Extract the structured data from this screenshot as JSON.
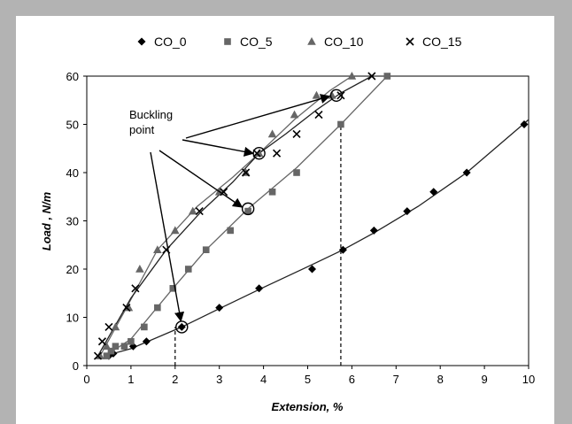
{
  "chart_data": {
    "type": "scatter",
    "xlabel": "Extension, %",
    "ylabel": "Load , N/m",
    "xlim": [
      0,
      10
    ],
    "ylim": [
      0,
      60
    ],
    "xticks": [
      "0",
      "1",
      "2",
      "3",
      "4",
      "5",
      "6",
      "7",
      "8",
      "9",
      "10"
    ],
    "yticks": [
      "0",
      "10",
      "20",
      "30",
      "40",
      "50",
      "60"
    ],
    "grid": false,
    "legend_position": "top",
    "annotation": "Buckling point",
    "series": [
      {
        "name": "CO_0",
        "marker": "diamond",
        "x": [
          0.5,
          0.6,
          1.05,
          1.35,
          2.15,
          3.0,
          3.9,
          5.1,
          5.8,
          6.5,
          7.25,
          7.85,
          8.6,
          9.9
        ],
        "y": [
          2,
          2.5,
          4,
          5,
          8,
          12,
          16,
          20,
          24,
          28,
          32,
          36,
          40,
          50
        ],
        "line_x": [
          0.4,
          1.0,
          2.15,
          3.0,
          4.0,
          5.0,
          5.8,
          6.5,
          7.5,
          8.6,
          10.0
        ],
        "line_y": [
          2,
          3.5,
          8,
          11.8,
          16.2,
          20.5,
          24,
          27.5,
          33,
          40,
          51
        ]
      },
      {
        "name": "CO_5",
        "marker": "square",
        "x": [
          0.45,
          0.55,
          0.65,
          0.85,
          1.0,
          1.3,
          1.6,
          1.95,
          2.3,
          2.7,
          3.25,
          3.65,
          4.2,
          4.75,
          5.75,
          6.8
        ],
        "y": [
          2,
          3,
          4,
          4,
          5,
          8,
          12,
          16,
          20,
          24,
          28,
          32,
          36,
          40,
          50,
          60
        ],
        "line_x": [
          0.5,
          1.0,
          1.95,
          2.7,
          3.65,
          4.75,
          5.75,
          6.8
        ],
        "line_y": [
          2.5,
          5.5,
          16,
          24,
          32.5,
          41,
          50,
          60
        ]
      },
      {
        "name": "CO_10",
        "marker": "triangle",
        "x": [
          0.3,
          0.45,
          0.65,
          0.95,
          1.2,
          1.6,
          2.0,
          2.4,
          3.0,
          3.6,
          3.9,
          4.2,
          4.7,
          5.2,
          5.55,
          6.0
        ],
        "y": [
          2,
          4,
          8,
          12,
          20,
          24,
          28,
          32,
          36,
          40,
          44,
          48,
          52,
          56,
          56,
          60
        ],
        "line_x": [
          0.3,
          0.9,
          1.6,
          2.5,
          3.3,
          3.9,
          4.7,
          5.5,
          6.0
        ],
        "line_y": [
          2,
          12,
          24,
          33,
          39,
          44,
          51,
          57,
          60
        ]
      },
      {
        "name": "CO_15",
        "marker": "x",
        "x": [
          0.25,
          0.35,
          0.5,
          0.9,
          1.1,
          1.8,
          2.55,
          3.1,
          3.6,
          3.85,
          4.3,
          4.75,
          5.25,
          5.75,
          6.45
        ],
        "y": [
          2,
          5,
          8,
          12,
          16,
          24,
          32,
          36,
          40,
          44,
          44,
          48,
          52,
          56,
          60
        ],
        "line_x": [
          0.25,
          1.0,
          1.8,
          2.6,
          3.3,
          3.9,
          4.5,
          5.2,
          5.75,
          6.45
        ],
        "line_y": [
          2,
          14,
          24,
          32,
          38,
          44,
          48,
          53,
          56.5,
          60
        ]
      }
    ],
    "buckling_points": [
      {
        "x": 2.15,
        "y": 8
      },
      {
        "x": 3.65,
        "y": 32.5
      },
      {
        "x": 3.9,
        "y": 44
      },
      {
        "x": 5.65,
        "y": 56
      }
    ],
    "reference_lines_x": [
      {
        "x": 2.0,
        "y_top": 8
      },
      {
        "x": 5.75,
        "y_top": 50
      }
    ],
    "colors": {
      "frame": "#b3b3b3",
      "CO_0": "#000000",
      "CO_5": "#666666",
      "CO_10": "#666666",
      "CO_15": "#000000",
      "fit_lines": "#333333"
    }
  }
}
